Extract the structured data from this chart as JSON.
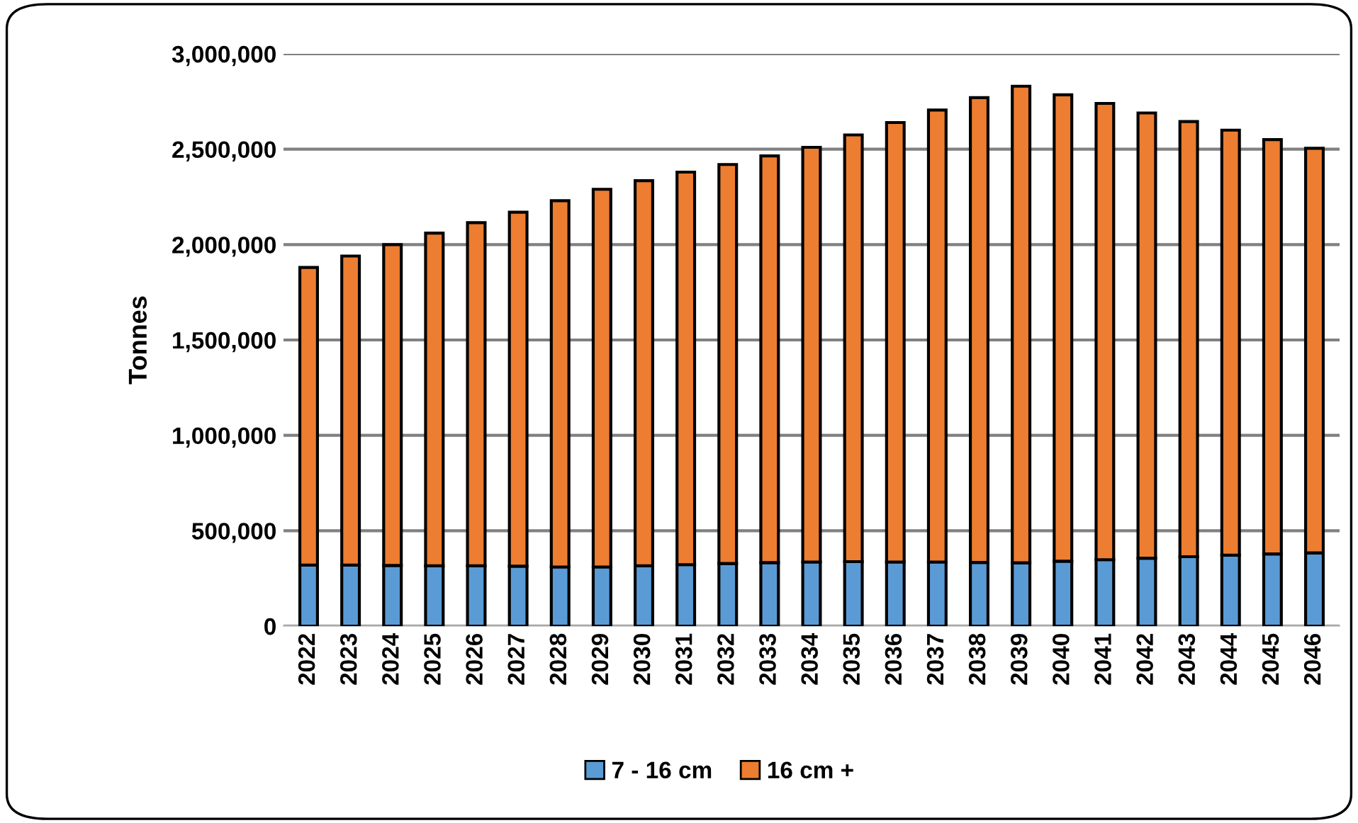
{
  "chart_data": {
    "type": "bar",
    "stacked": true,
    "ylabel": "Tonnes",
    "categories": [
      "2022",
      "2023",
      "2024",
      "2025",
      "2026",
      "2027",
      "2028",
      "2029",
      "2030",
      "2031",
      "2032",
      "2033",
      "2034",
      "2035",
      "2036",
      "2037",
      "2038",
      "2039",
      "2040",
      "2041",
      "2042",
      "2043",
      "2044",
      "2045",
      "2046"
    ],
    "series": [
      {
        "name": "7 - 16 cm",
        "color": "#5b9bd5",
        "values": [
          320000,
          320000,
          318000,
          316000,
          316000,
          314000,
          310000,
          310000,
          316000,
          322000,
          328000,
          333000,
          336000,
          338000,
          336000,
          336000,
          334000,
          332000,
          340000,
          348000,
          356000,
          364000,
          372000,
          378000,
          384000
        ]
      },
      {
        "name": "16 cm +",
        "color": "#ed7d31",
        "values": [
          1560000,
          1620000,
          1682000,
          1744000,
          1799000,
          1856000,
          1920000,
          1980000,
          2019000,
          2058000,
          2092000,
          2132000,
          2174000,
          2237000,
          2304000,
          2369000,
          2436000,
          2498000,
          2445000,
          2392000,
          2334000,
          2281000,
          2228000,
          2172000,
          2121000
        ]
      }
    ],
    "ylim": [
      0,
      3000000
    ],
    "yticks": [
      {
        "value": 0,
        "label": "0"
      },
      {
        "value": 500000,
        "label": "500,000"
      },
      {
        "value": 1000000,
        "label": "1,000,000"
      },
      {
        "value": 1500000,
        "label": "1,500,000"
      },
      {
        "value": 2000000,
        "label": "2,000,000"
      },
      {
        "value": 2500000,
        "label": "2,500,000"
      },
      {
        "value": 3000000,
        "label": "3,000,000"
      }
    ],
    "grid": "y",
    "legend": "bottom"
  }
}
